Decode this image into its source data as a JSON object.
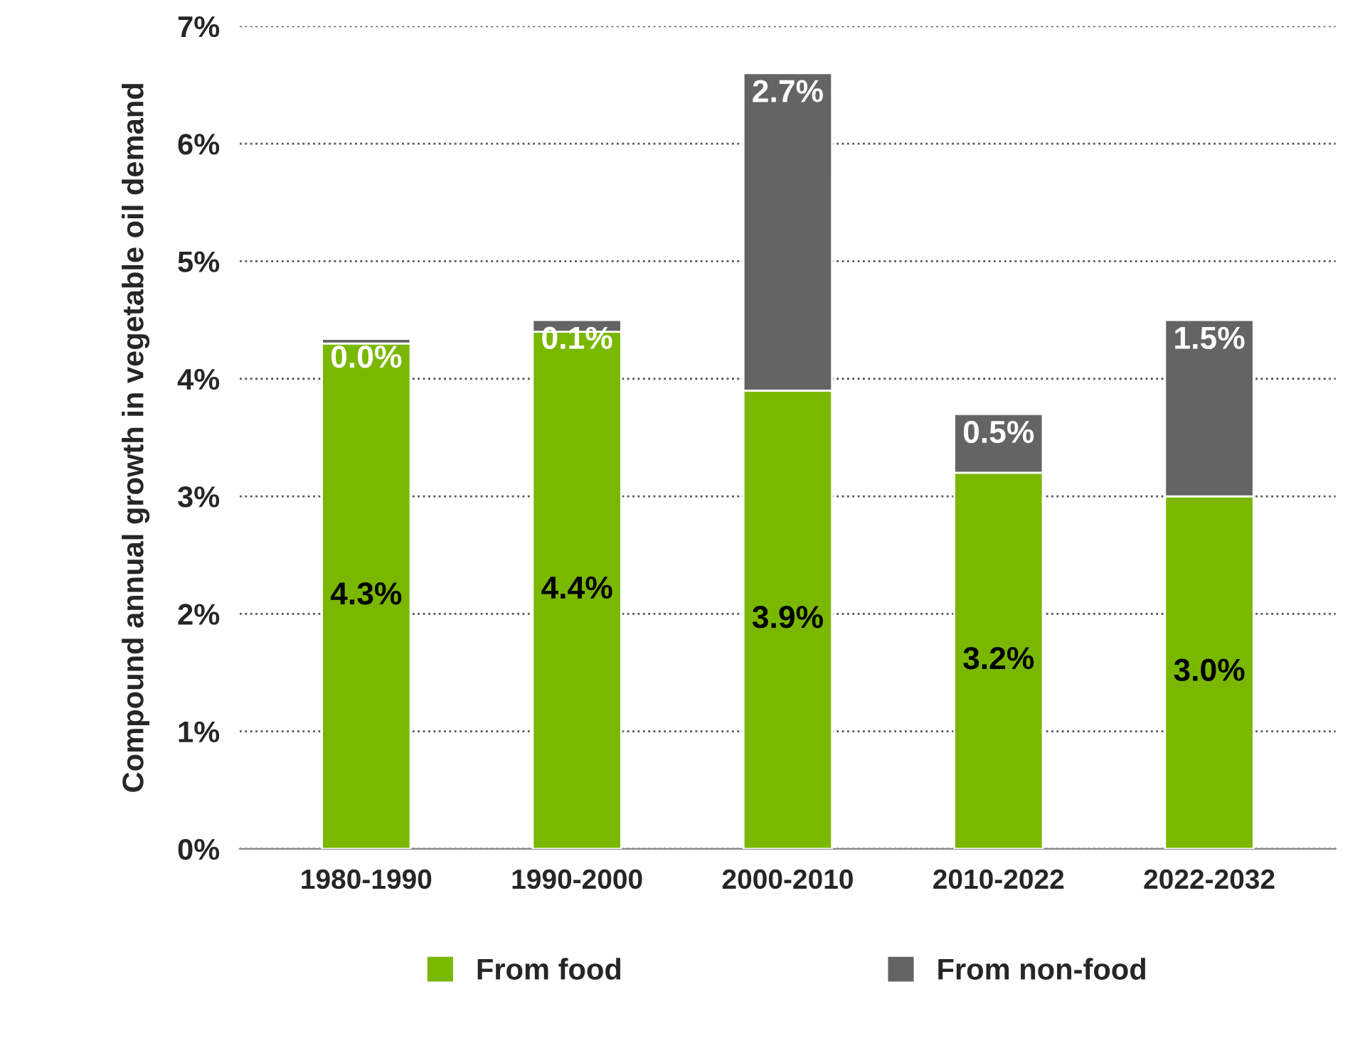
{
  "chart_data": {
    "type": "bar",
    "stacked": true,
    "ylabel": "Compound annual growth in vegetable oil demand",
    "categories": [
      "1980-1990",
      "1990-2000",
      "2000-2010",
      "2010-2022",
      "2022-2032"
    ],
    "series": [
      {
        "name": "From food",
        "color": "#7ab800",
        "values": [
          4.3,
          4.4,
          3.9,
          3.2,
          3.0
        ],
        "value_labels": [
          "4.3%",
          "4.4%",
          "3.9%",
          "3.2%",
          "3.0%"
        ]
      },
      {
        "name": "From non-food",
        "color": "#646464",
        "values": [
          0.04,
          0.1,
          2.7,
          0.5,
          1.5
        ],
        "value_labels": [
          "0.0%",
          "0.1%",
          "2.7%",
          "0.5%",
          "1.5%"
        ]
      }
    ],
    "ylim": [
      0,
      7
    ],
    "yticks": [
      {
        "value": 0,
        "label": "0%"
      },
      {
        "value": 1,
        "label": "1%"
      },
      {
        "value": 2,
        "label": "2%"
      },
      {
        "value": 3,
        "label": "3%"
      },
      {
        "value": 4,
        "label": "4%"
      },
      {
        "value": 5,
        "label": "5%"
      },
      {
        "value": 6,
        "label": "6%"
      },
      {
        "value": 7,
        "label": "7%"
      }
    ],
    "grid": "y",
    "legend": "bottom"
  }
}
